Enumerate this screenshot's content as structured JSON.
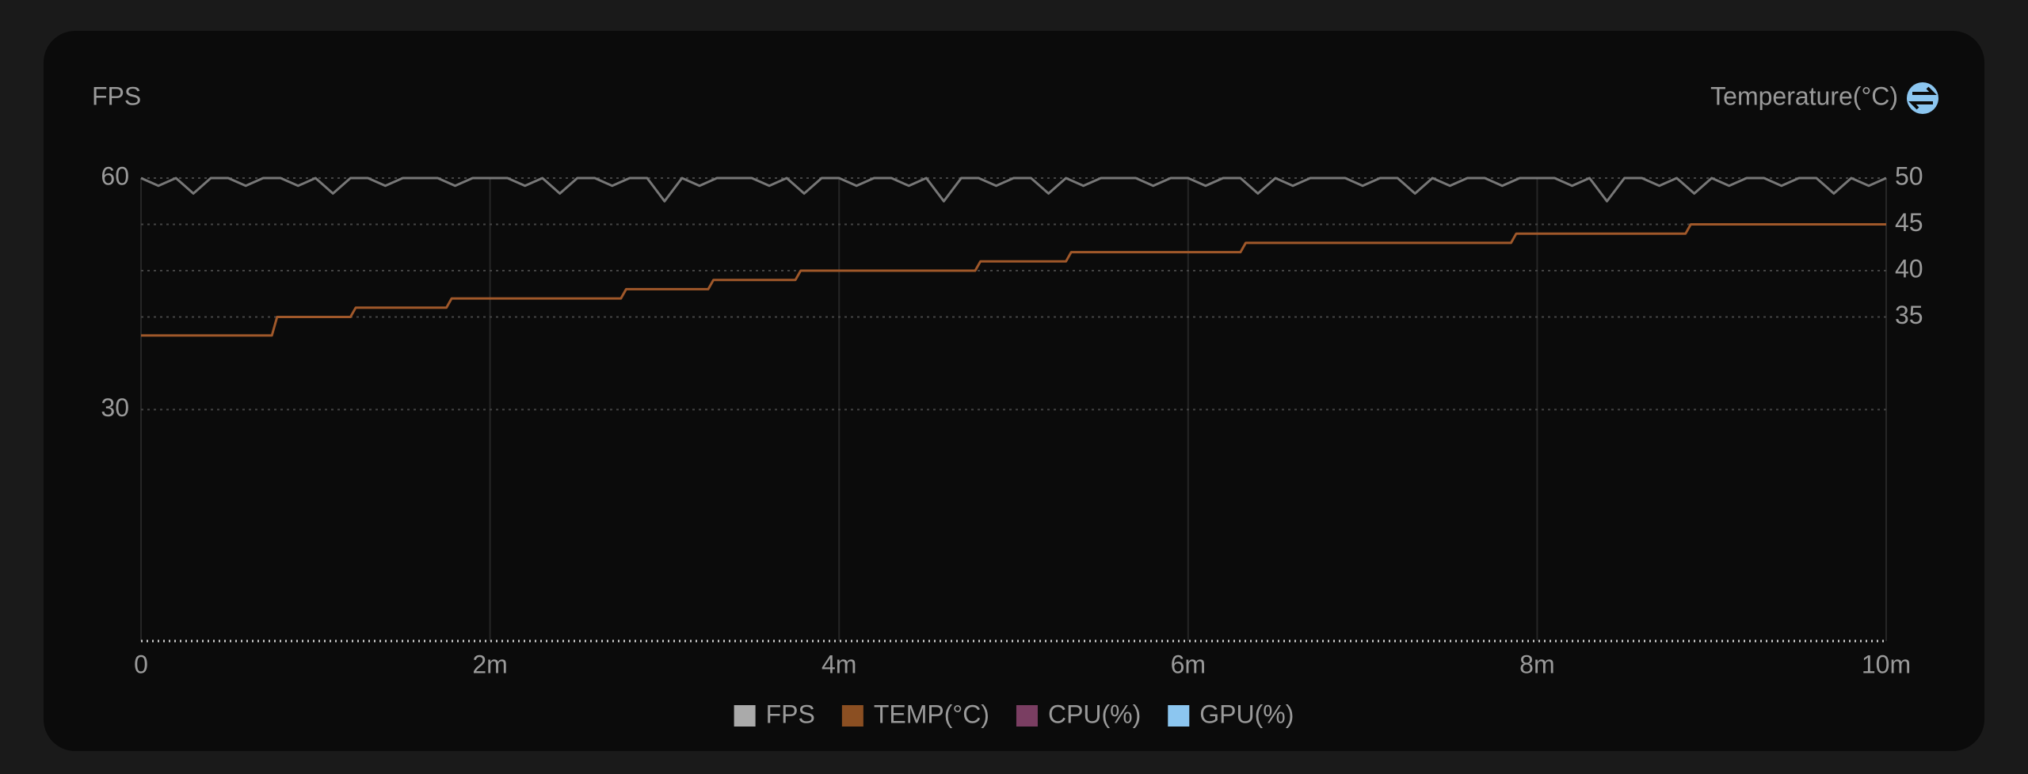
{
  "chart_data": {
    "type": "line",
    "ylabel": "FPS",
    "y2label": "Temperature(°C)",
    "xlim": [
      0,
      10
    ],
    "xticks": [
      0,
      {
        "value": 2,
        "label": "2m"
      },
      {
        "value": 4,
        "label": "4m"
      },
      {
        "value": 6,
        "label": "6m"
      },
      {
        "value": 8,
        "label": "8m"
      },
      {
        "value": 10,
        "label": "10m"
      }
    ],
    "ylim": [
      0,
      60
    ],
    "yticks": [
      30,
      60
    ],
    "y2lim": [
      0,
      50
    ],
    "y2ticks": [
      35,
      40,
      45,
      50
    ],
    "grid": true,
    "series": [
      {
        "name": "FPS",
        "color": "#aaaaaa",
        "line_color": "#777777",
        "axis": "y",
        "x": [
          0,
          0.1,
          0.2,
          0.3,
          0.4,
          0.5,
          0.6,
          0.7,
          0.8,
          0.9,
          1,
          1.1,
          1.2,
          1.3,
          1.4,
          1.5,
          1.6,
          1.7,
          1.8,
          1.9,
          2,
          2.1,
          2.2,
          2.3,
          2.4,
          2.5,
          2.6,
          2.7,
          2.8,
          2.9,
          3,
          3.1,
          3.2,
          3.3,
          3.4,
          3.5,
          3.6,
          3.7,
          3.8,
          3.9,
          4,
          4.1,
          4.2,
          4.3,
          4.4,
          4.5,
          4.6,
          4.7,
          4.8,
          4.9,
          5,
          5.1,
          5.2,
          5.3,
          5.4,
          5.5,
          5.6,
          5.7,
          5.8,
          5.9,
          6,
          6.1,
          6.2,
          6.3,
          6.4,
          6.5,
          6.6,
          6.7,
          6.8,
          6.9,
          7,
          7.1,
          7.2,
          7.3,
          7.4,
          7.5,
          7.6,
          7.7,
          7.8,
          7.9,
          8,
          8.1,
          8.2,
          8.3,
          8.4,
          8.5,
          8.6,
          8.7,
          8.8,
          8.9,
          9,
          9.1,
          9.2,
          9.3,
          9.4,
          9.5,
          9.6,
          9.7,
          9.8,
          9.9,
          10
        ],
        "values": [
          60,
          59,
          60,
          58,
          60,
          60,
          59,
          60,
          60,
          59,
          60,
          58,
          60,
          60,
          59,
          60,
          60,
          60,
          59,
          60,
          60,
          60,
          59,
          60,
          58,
          60,
          60,
          59,
          60,
          60,
          57,
          60,
          59,
          60,
          60,
          60,
          59,
          60,
          58,
          60,
          60,
          59,
          60,
          60,
          59,
          60,
          57,
          60,
          60,
          59,
          60,
          60,
          58,
          60,
          59,
          60,
          60,
          60,
          59,
          60,
          60,
          59,
          60,
          60,
          58,
          60,
          59,
          60,
          60,
          60,
          59,
          60,
          60,
          58,
          60,
          59,
          60,
          60,
          59,
          60,
          60,
          60,
          59,
          60,
          57,
          60,
          60,
          59,
          60,
          58,
          60,
          59,
          60,
          60,
          59,
          60,
          60,
          58,
          60,
          59,
          60
        ]
      },
      {
        "name": "TEMP(°C)",
        "color": "#8b4f22",
        "line_color": "#a0582a",
        "axis": "y2",
        "x": [
          0,
          0.75,
          0.78,
          1.2,
          1.23,
          1.75,
          1.78,
          2.75,
          2.78,
          3.25,
          3.28,
          3.75,
          3.78,
          4.78,
          4.81,
          5.3,
          5.33,
          6.3,
          6.33,
          7.85,
          7.88,
          8.85,
          8.88,
          10
        ],
        "values": [
          33,
          33,
          35,
          35,
          36,
          36,
          37,
          37,
          38,
          38,
          39,
          39,
          40,
          40,
          41,
          41,
          42,
          42,
          43,
          43,
          44,
          44,
          45,
          45
        ]
      },
      {
        "name": "CPU(%)",
        "color": "#7a3e62",
        "line_color": "#7a3e62",
        "axis": "y",
        "x": [],
        "values": []
      },
      {
        "name": "GPU(%)",
        "color": "#8cc6f0",
        "line_color": "#8cc6f0",
        "axis": "y",
        "x": [],
        "values": []
      }
    ]
  }
}
